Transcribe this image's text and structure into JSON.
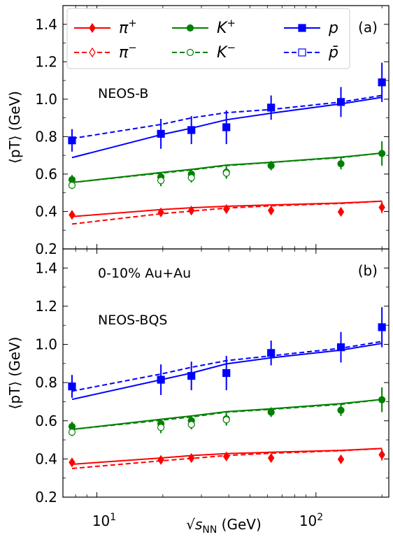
{
  "figure": {
    "x_axis_label_prefix": "√",
    "x_axis_label_var": "s",
    "x_axis_label_sub": "NN",
    "x_axis_label_unit": " (GeV)",
    "x_tick_labels": [
      "10",
      "1",
      "10",
      "2"
    ]
  },
  "chart_data": [
    {
      "type": "line",
      "panel": "(a)",
      "annotations": [
        "NEOS-B"
      ],
      "xscale": "log",
      "xlim": [
        7.0,
        215
      ],
      "ylim": [
        0.2,
        1.5
      ],
      "yticks": [
        "0.2",
        "0.4",
        "0.6",
        "0.8",
        "1.0",
        "1.2",
        "1.4"
      ],
      "ylabel": "⟨pT⟩ (GeV)",
      "grid": false,
      "legend": {
        "placement": "top",
        "entries": [
          {
            "label": "π",
            "sup": "+",
            "color": "#ff0000",
            "marker": "diamond",
            "filled": true,
            "dash": false
          },
          {
            "label": "K",
            "sup": "+",
            "color": "#008000",
            "marker": "circle",
            "filled": true,
            "dash": false
          },
          {
            "label": "p",
            "sup": "",
            "color": "#0000ff",
            "marker": "square",
            "filled": true,
            "dash": false
          },
          {
            "label": "π",
            "sup": "−",
            "color": "#ff0000",
            "marker": "diamond",
            "filled": false,
            "dash": true
          },
          {
            "label": "K",
            "sup": "−",
            "color": "#008000",
            "marker": "circle",
            "filled": false,
            "dash": true
          },
          {
            "label": "p̄",
            "sup": "",
            "color": "#0000ff",
            "marker": "square",
            "filled": false,
            "dash": true
          }
        ]
      },
      "points": [
        {
          "marker": "diamond",
          "color": "#ff0000",
          "filled": true,
          "x": [
            7.7,
            19.6,
            27,
            39,
            62.4,
            130,
            200
          ],
          "y": [
            0.382,
            0.395,
            0.405,
            0.413,
            0.405,
            0.398,
            0.422
          ],
          "err": [
            0.02,
            0.02,
            0.02,
            0.02,
            0.02,
            0.015,
            0.03
          ]
        },
        {
          "marker": "circle",
          "color": "#008000",
          "filled": true,
          "x": [
            7.7,
            19.6,
            27,
            39,
            62.4,
            130,
            200
          ],
          "y": [
            0.57,
            0.585,
            0.6,
            0.61,
            0.645,
            0.655,
            0.71
          ],
          "err": [
            0.025,
            0.025,
            0.025,
            0.03,
            0.025,
            0.03,
            0.065
          ]
        },
        {
          "marker": "circle",
          "color": "#008000",
          "filled": false,
          "x": [
            7.7,
            19.6,
            27,
            39
          ],
          "y": [
            0.54,
            0.565,
            0.58,
            0.605
          ],
          "err": [
            0.02,
            0.03,
            0.025,
            0.03
          ]
        },
        {
          "marker": "square",
          "color": "#0000ff",
          "filled": true,
          "x": [
            7.7,
            19.6,
            27,
            39,
            62.4,
            130,
            200
          ],
          "y": [
            0.78,
            0.815,
            0.835,
            0.85,
            0.955,
            0.985,
            1.09
          ],
          "err": [
            0.06,
            0.08,
            0.075,
            0.09,
            0.065,
            0.08,
            0.105
          ]
        }
      ],
      "series": [
        {
          "name": "π+ model",
          "color": "#ff0000",
          "dash": false,
          "x": [
            7.7,
            19.6,
            27,
            39,
            62.4,
            130,
            200
          ],
          "y": [
            0.373,
            0.41,
            0.42,
            0.428,
            0.435,
            0.445,
            0.455
          ]
        },
        {
          "name": "π− model",
          "color": "#ff0000",
          "dash": true,
          "x": [
            7.7,
            19.6,
            27,
            39,
            62.4,
            130,
            200
          ],
          "y": [
            0.333,
            0.388,
            0.402,
            0.418,
            0.43,
            0.443,
            0.455
          ]
        },
        {
          "name": "K+ model",
          "color": "#008000",
          "dash": false,
          "x": [
            7.7,
            19.6,
            27,
            39,
            62.4,
            130,
            200
          ],
          "y": [
            0.555,
            0.608,
            0.625,
            0.648,
            0.663,
            0.69,
            0.712
          ]
        },
        {
          "name": "K− model",
          "color": "#008000",
          "dash": true,
          "x": [
            7.7,
            19.6,
            27,
            39,
            62.4,
            130,
            200
          ],
          "y": [
            0.555,
            0.605,
            0.622,
            0.645,
            0.662,
            0.688,
            0.712
          ]
        },
        {
          "name": "p model",
          "color": "#0000ff",
          "dash": false,
          "x": [
            7.7,
            19.6,
            27,
            39,
            62.4,
            130,
            200
          ],
          "y": [
            0.688,
            0.81,
            0.845,
            0.89,
            0.925,
            0.975,
            1.01
          ]
        },
        {
          "name": "p̄ model",
          "color": "#0000ff",
          "dash": true,
          "x": [
            7.7,
            19.6,
            27,
            39,
            62.4,
            130,
            200
          ],
          "y": [
            0.79,
            0.865,
            0.9,
            0.928,
            0.945,
            0.985,
            1.02
          ]
        }
      ]
    },
    {
      "type": "line",
      "panel": "(b)",
      "annotations": [
        "0-10% Au+Au",
        "NEOS-BQS"
      ],
      "xscale": "log",
      "xlim": [
        7.0,
        215
      ],
      "ylim": [
        0.2,
        1.5
      ],
      "yticks": [
        "0.2",
        "0.4",
        "0.6",
        "0.8",
        "1.0",
        "1.2",
        "1.4"
      ],
      "ylabel": "⟨pT⟩ (GeV)",
      "grid": false,
      "points": [
        {
          "marker": "diamond",
          "color": "#ff0000",
          "filled": true,
          "x": [
            7.7,
            19.6,
            27,
            39,
            62.4,
            130,
            200
          ],
          "y": [
            0.382,
            0.395,
            0.405,
            0.413,
            0.405,
            0.398,
            0.422
          ],
          "err": [
            0.02,
            0.02,
            0.02,
            0.02,
            0.02,
            0.015,
            0.03
          ]
        },
        {
          "marker": "circle",
          "color": "#008000",
          "filled": true,
          "x": [
            7.7,
            19.6,
            27,
            39,
            62.4,
            130,
            200
          ],
          "y": [
            0.57,
            0.585,
            0.6,
            0.61,
            0.645,
            0.655,
            0.71
          ],
          "err": [
            0.025,
            0.025,
            0.025,
            0.03,
            0.025,
            0.03,
            0.065
          ]
        },
        {
          "marker": "circle",
          "color": "#008000",
          "filled": false,
          "x": [
            7.7,
            19.6,
            27,
            39
          ],
          "y": [
            0.54,
            0.565,
            0.58,
            0.605
          ],
          "err": [
            0.02,
            0.03,
            0.025,
            0.03
          ]
        },
        {
          "marker": "square",
          "color": "#0000ff",
          "filled": true,
          "x": [
            7.7,
            19.6,
            27,
            39,
            62.4,
            130,
            200
          ],
          "y": [
            0.78,
            0.815,
            0.835,
            0.85,
            0.955,
            0.985,
            1.09
          ],
          "err": [
            0.06,
            0.08,
            0.075,
            0.09,
            0.065,
            0.08,
            0.105
          ]
        }
      ],
      "series": [
        {
          "name": "π+ model",
          "color": "#ff0000",
          "dash": false,
          "x": [
            7.7,
            19.6,
            27,
            39,
            62.4,
            130,
            200
          ],
          "y": [
            0.372,
            0.405,
            0.418,
            0.428,
            0.435,
            0.445,
            0.455
          ]
        },
        {
          "name": "π− model",
          "color": "#ff0000",
          "dash": true,
          "x": [
            7.7,
            19.6,
            27,
            39,
            62.4,
            130,
            200
          ],
          "y": [
            0.35,
            0.39,
            0.403,
            0.418,
            0.43,
            0.443,
            0.455
          ]
        },
        {
          "name": "K+ model",
          "color": "#008000",
          "dash": false,
          "x": [
            7.7,
            19.6,
            27,
            39,
            62.4,
            130,
            200
          ],
          "y": [
            0.555,
            0.608,
            0.625,
            0.648,
            0.663,
            0.69,
            0.712
          ]
        },
        {
          "name": "K− model",
          "color": "#008000",
          "dash": true,
          "x": [
            7.7,
            19.6,
            27,
            39,
            62.4,
            130,
            200
          ],
          "y": [
            0.555,
            0.603,
            0.62,
            0.645,
            0.66,
            0.686,
            0.712
          ]
        },
        {
          "name": "p model",
          "color": "#0000ff",
          "dash": false,
          "x": [
            7.7,
            19.6,
            27,
            39,
            62.4,
            130,
            200
          ],
          "y": [
            0.712,
            0.815,
            0.85,
            0.898,
            0.93,
            0.97,
            1.005
          ]
        },
        {
          "name": "p̄ model",
          "color": "#0000ff",
          "dash": true,
          "x": [
            7.7,
            19.6,
            27,
            39,
            62.4,
            130,
            200
          ],
          "y": [
            0.755,
            0.845,
            0.88,
            0.915,
            0.94,
            0.98,
            1.015
          ]
        }
      ]
    }
  ]
}
